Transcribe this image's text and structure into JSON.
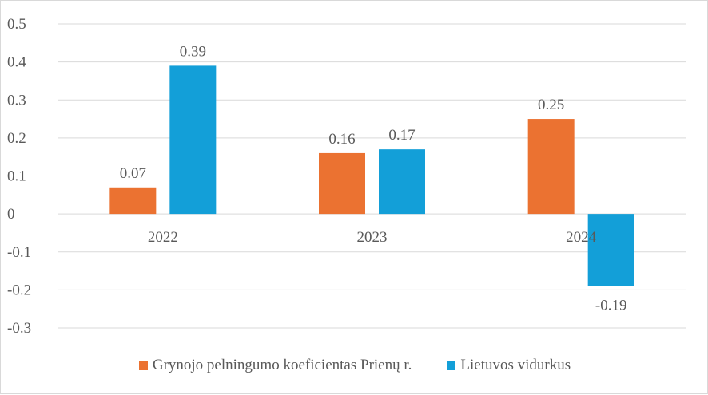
{
  "chart_data": {
    "type": "bar",
    "title": "",
    "categories": [
      "2022",
      "2023",
      "2024"
    ],
    "series": [
      {
        "name": "Grynojo pelningumo koeficientas Prienų r.",
        "values": [
          0.07,
          0.16,
          0.25
        ],
        "color": "#EB7231"
      },
      {
        "name": "Lietuvos vidurkus",
        "values": [
          0.39,
          0.17,
          -0.19
        ],
        "color": "#139FD8"
      }
    ],
    "yticks": [
      "0.5",
      "0.4",
      "0.3",
      "0.2",
      "0.1",
      "0",
      "-0.1",
      "-0.2",
      "-0.3"
    ],
    "ylim": [
      -0.3,
      0.5
    ],
    "grid": true,
    "legend": "bottom",
    "xlabel": "",
    "ylabel": ""
  }
}
